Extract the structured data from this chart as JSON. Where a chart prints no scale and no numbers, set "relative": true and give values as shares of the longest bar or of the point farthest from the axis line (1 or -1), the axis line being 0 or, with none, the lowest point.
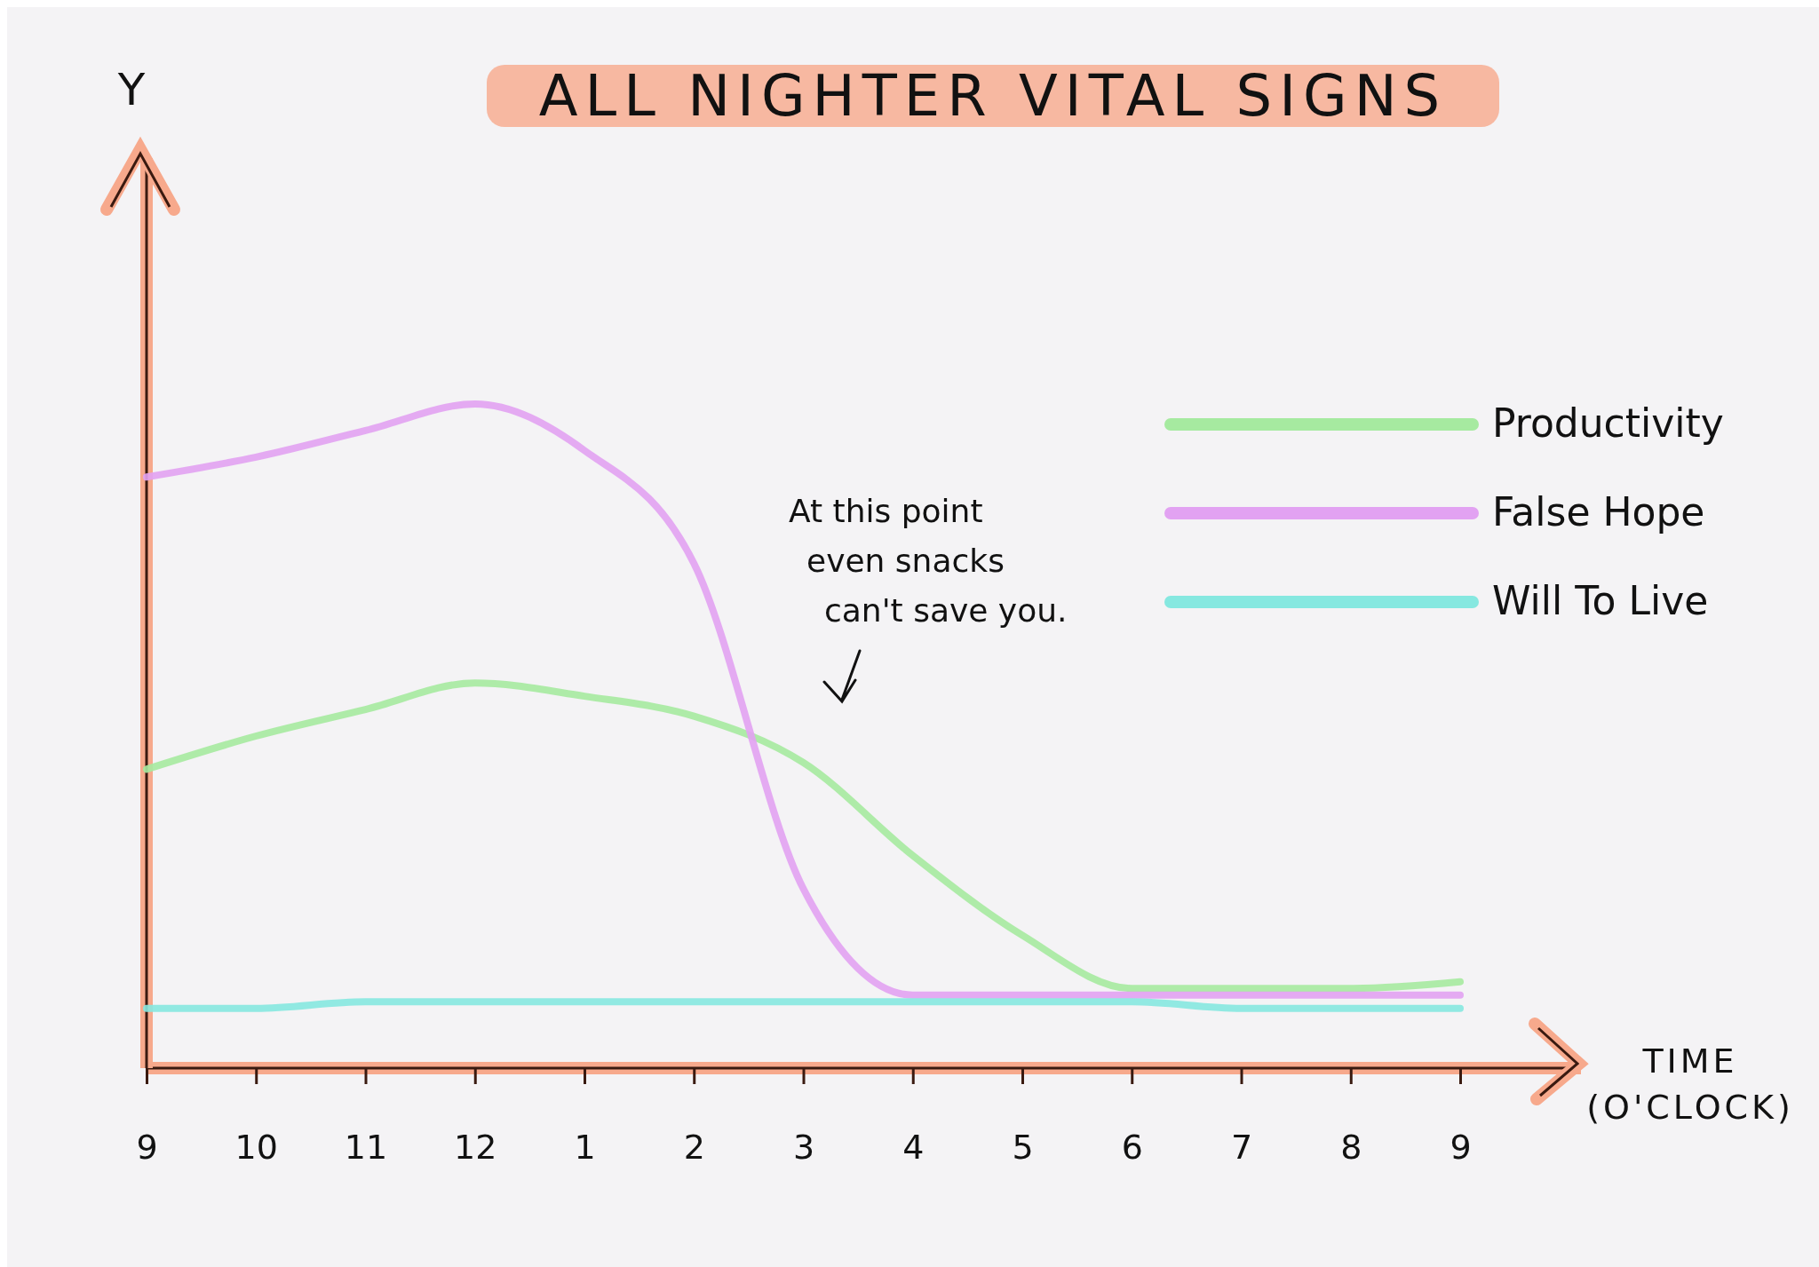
{
  "chart_data": {
    "type": "line",
    "title": "ALL NIGHTER VITAL SIGNS",
    "xlabel": "TIME (O'CLOCK)",
    "relative": true,
    "legend": "right",
    "grid": false,
    "marker": "none",
    "line_style": "solid",
    "categories": [
      "9",
      "10",
      "11",
      "12",
      "1",
      "2",
      "3",
      "4",
      "5",
      "6",
      "7",
      "8",
      "9"
    ],
    "annotations": [
      "Y",
      "At this point even snacks can't save you."
    ],
    "series": [
      {
        "name": "Productivity",
        "color": "#a6eaa0",
        "values": [
          0.45,
          0.5,
          0.54,
          0.58,
          0.56,
          0.53,
          0.46,
          0.32,
          0.2,
          0.12,
          0.12,
          0.12,
          0.13
        ]
      },
      {
        "name": "False Hope",
        "color": "#e2a2f2",
        "values": [
          0.89,
          0.92,
          0.96,
          1,
          0.93,
          0.76,
          0.27,
          0.11,
          0.11,
          0.11,
          0.11,
          0.11,
          0.11
        ]
      },
      {
        "name": "Will To Live",
        "color": "#86e8e0",
        "values": [
          0.09,
          0.09,
          0.1,
          0.1,
          0.1,
          0.1,
          0.1,
          0.1,
          0.1,
          0.1,
          0.09,
          0.09,
          0.09
        ]
      }
    ]
  }
}
